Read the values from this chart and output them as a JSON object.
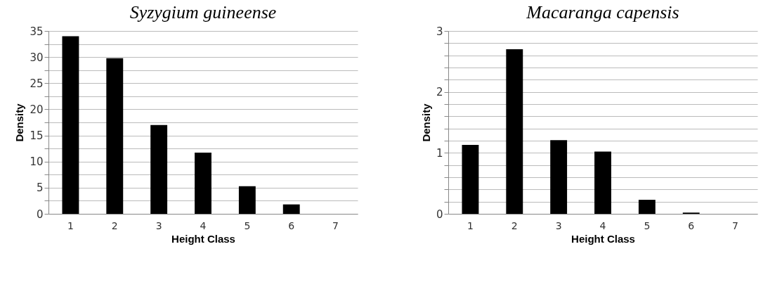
{
  "chart_data": [
    {
      "type": "bar",
      "title": "Syzygium guineense",
      "xlabel": "Height Class",
      "ylabel": "Density",
      "categories": [
        "1",
        "2",
        "3",
        "4",
        "5",
        "6",
        "7"
      ],
      "values": [
        34,
        29.8,
        17,
        11.7,
        5.3,
        1.8,
        0
      ],
      "color": "#000000",
      "ylim": [
        0,
        35
      ],
      "yticks": [
        0,
        {
          "value": 2.5,
          "label": null
        },
        5,
        {
          "value": 7.5,
          "label": null
        },
        10,
        {
          "value": 12.5,
          "label": null
        },
        15,
        {
          "value": 17.5,
          "label": null
        },
        20,
        {
          "value": 22.5,
          "label": null
        },
        25,
        {
          "value": 27.5,
          "label": null
        },
        30,
        {
          "value": 32.5,
          "label": null
        },
        35
      ],
      "grid": "y"
    },
    {
      "type": "bar",
      "title": "Macaranga capensis",
      "xlabel": "Height Class",
      "ylabel": "Density",
      "categories": [
        "1",
        "2",
        "3",
        "4",
        "5",
        "6",
        "7"
      ],
      "values": [
        1.13,
        2.7,
        1.21,
        1.02,
        0.23,
        0.02,
        0
      ],
      "color": "#000000",
      "ylim": [
        0,
        3
      ],
      "yticks": [
        0,
        {
          "value": 0.2,
          "label": null
        },
        {
          "value": 0.4,
          "label": null
        },
        {
          "value": 0.6,
          "label": null
        },
        {
          "value": 0.8,
          "label": null
        },
        1,
        {
          "value": 1.2,
          "label": null
        },
        {
          "value": 1.4,
          "label": null
        },
        {
          "value": 1.6,
          "label": null
        },
        {
          "value": 1.8,
          "label": null
        },
        2,
        {
          "value": 2.2,
          "label": null
        },
        {
          "value": 2.4,
          "label": null
        },
        {
          "value": 2.6,
          "label": null
        },
        {
          "value": 2.8,
          "label": null
        },
        3
      ],
      "grid": "y"
    }
  ]
}
